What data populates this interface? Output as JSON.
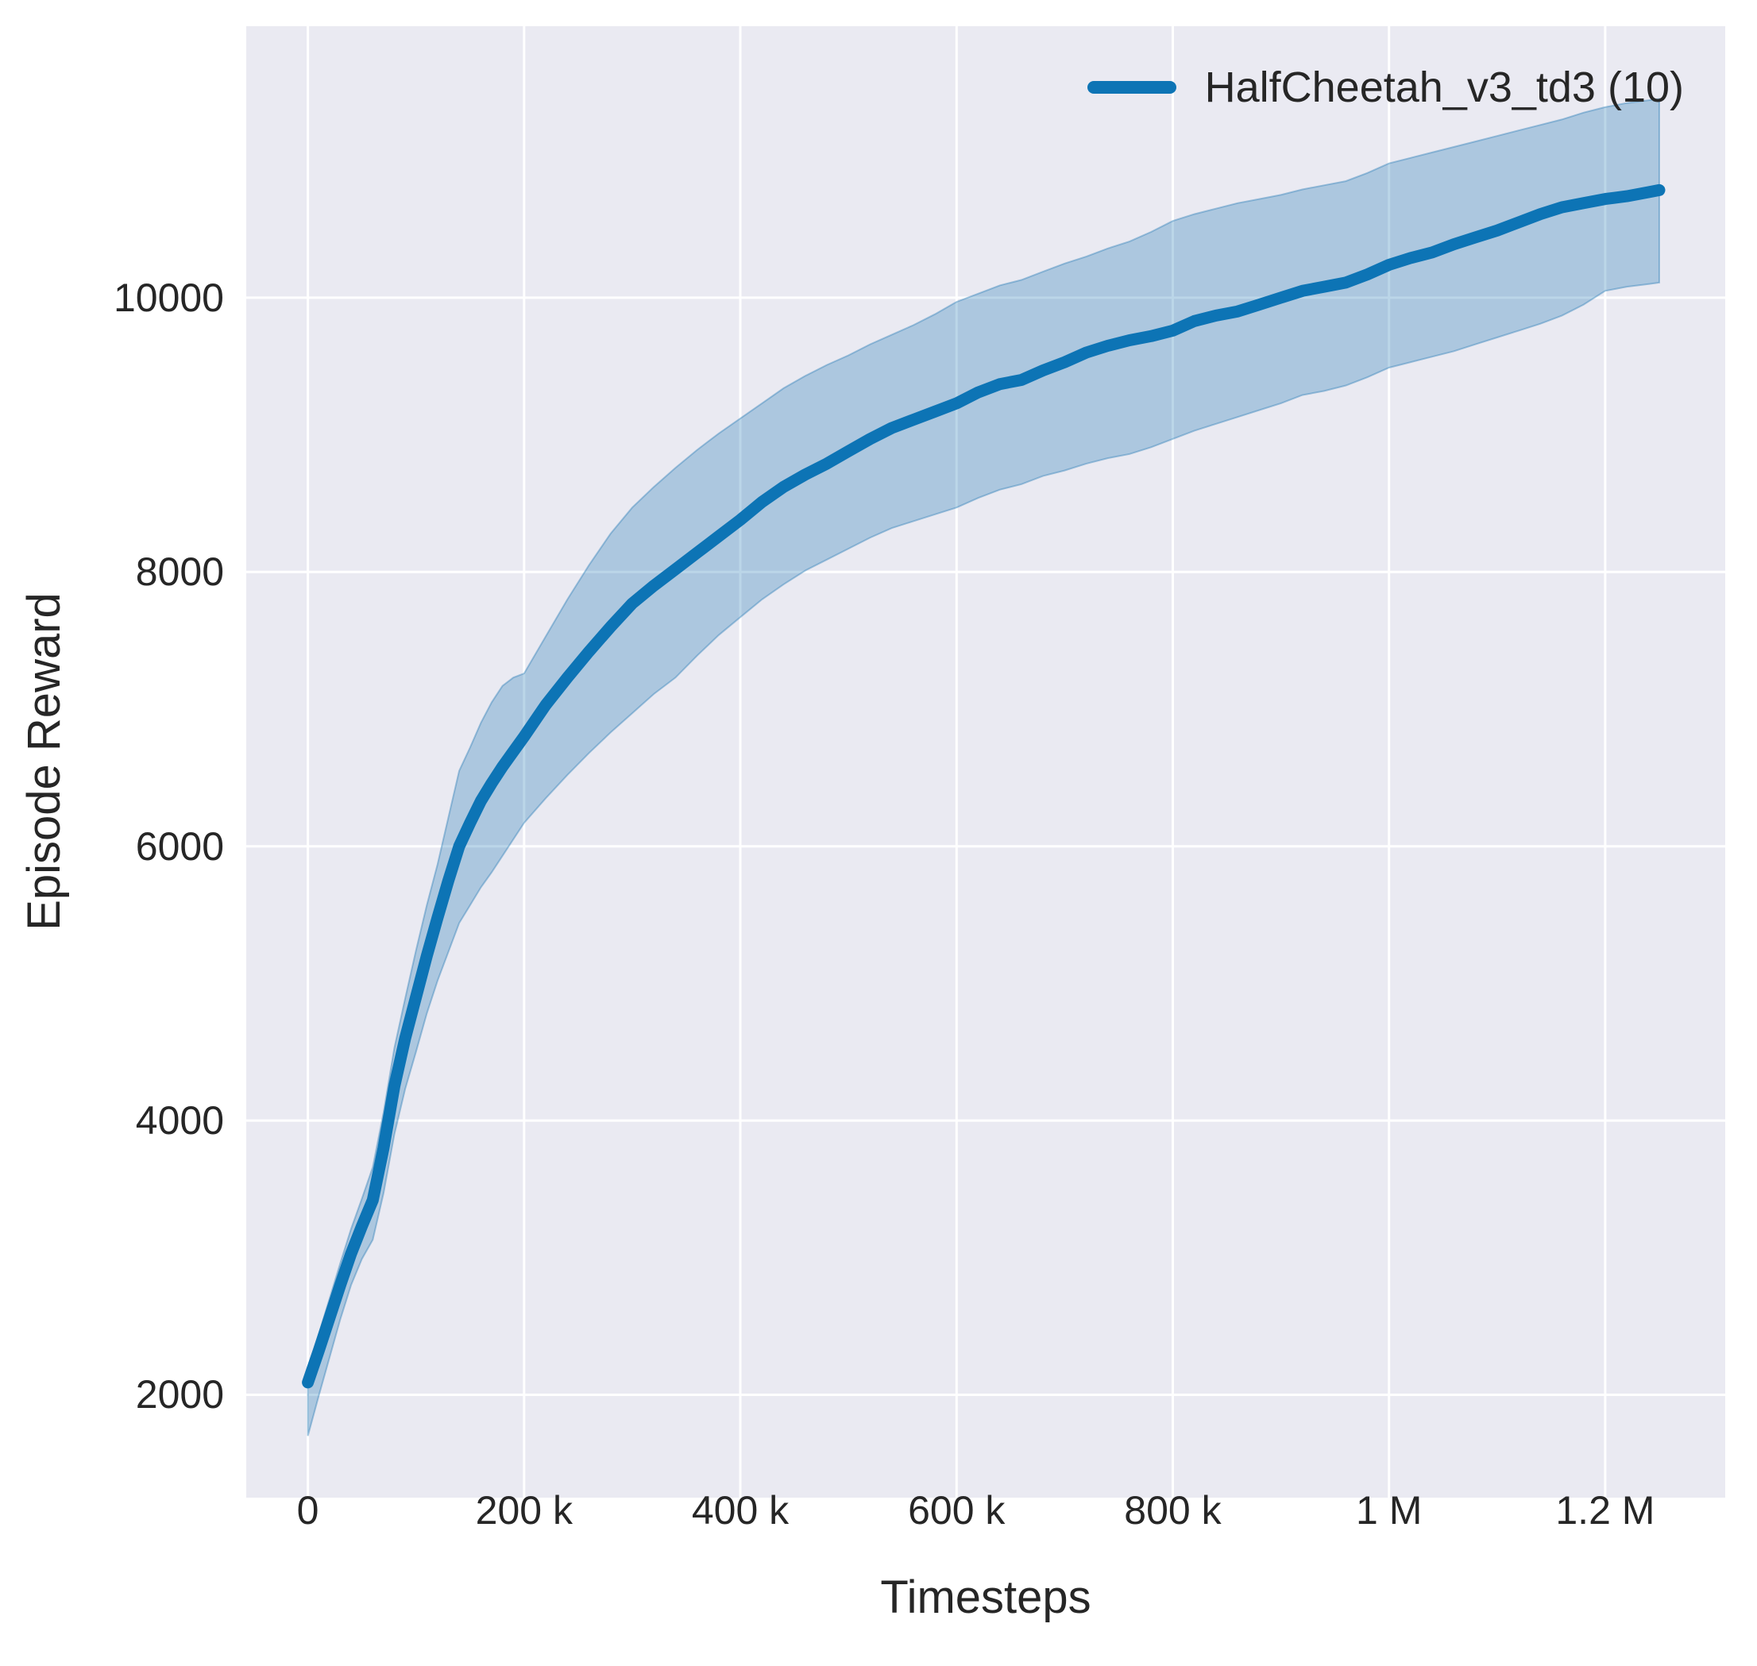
{
  "figure": {
    "background": "#ffffff",
    "plot_background": "#eaeaf2",
    "grid_color": "#ffffff",
    "text_color": "#262626"
  },
  "legend": {
    "position": "upper-right",
    "entries": [
      {
        "label": "HalfCheetah_v3_td3 (10)",
        "color": "#0d74b5"
      }
    ]
  },
  "chart_data": {
    "type": "line",
    "title": "",
    "xlabel": "Timesteps",
    "ylabel": "Episode Reward",
    "grid": true,
    "legend_position": "upper right",
    "xlim": [
      -57000,
      1311000
    ],
    "ylim": [
      1250,
      11980
    ],
    "x_ticks": {
      "values": [
        0,
        200000,
        400000,
        600000,
        800000,
        1000000,
        1200000
      ],
      "labels": [
        "0",
        "200 k",
        "400 k",
        "600 k",
        "800 k",
        "1 M",
        "1.2 M"
      ]
    },
    "y_ticks": {
      "values": [
        2000,
        4000,
        6000,
        8000,
        10000
      ],
      "labels": [
        "2000",
        "4000",
        "6000",
        "8000",
        "10000"
      ]
    },
    "series": [
      {
        "name": "HalfCheetah_v3_td3 (10)",
        "color": "#0d74b5",
        "line_width": 15,
        "band_fill": "rgba(31,119,180,0.30)",
        "band_edge": "rgba(31,119,180,0.38)",
        "x": [
          0,
          10000,
          20000,
          30000,
          40000,
          50000,
          60000,
          70000,
          80000,
          90000,
          100000,
          110000,
          120000,
          130000,
          140000,
          150000,
          160000,
          170000,
          180000,
          190000,
          200000,
          220000,
          240000,
          260000,
          280000,
          300000,
          320000,
          340000,
          360000,
          380000,
          400000,
          420000,
          440000,
          460000,
          480000,
          500000,
          520000,
          540000,
          560000,
          580000,
          600000,
          620000,
          640000,
          660000,
          680000,
          700000,
          720000,
          740000,
          760000,
          780000,
          800000,
          820000,
          840000,
          860000,
          880000,
          900000,
          920000,
          940000,
          960000,
          980000,
          1000000,
          1020000,
          1040000,
          1060000,
          1080000,
          1100000,
          1120000,
          1140000,
          1160000,
          1180000,
          1200000,
          1220000,
          1240000,
          1250000
        ],
        "mean": [
          2090,
          2320,
          2560,
          2800,
          3030,
          3230,
          3420,
          3800,
          4250,
          4600,
          4900,
          5200,
          5480,
          5750,
          6000,
          6170,
          6330,
          6460,
          6580,
          6690,
          6800,
          7030,
          7230,
          7420,
          7600,
          7770,
          7900,
          8020,
          8140,
          8260,
          8380,
          8510,
          8620,
          8710,
          8790,
          8880,
          8970,
          9050,
          9110,
          9170,
          9230,
          9310,
          9370,
          9400,
          9470,
          9530,
          9600,
          9650,
          9690,
          9720,
          9760,
          9830,
          9870,
          9900,
          9950,
          10000,
          10050,
          10080,
          10110,
          10170,
          10240,
          10290,
          10330,
          10390,
          10440,
          10490,
          10550,
          10610,
          10660,
          10690,
          10720,
          10740,
          10770,
          10785
        ],
        "band_lower": [
          1700,
          1990,
          2270,
          2550,
          2800,
          2990,
          3130,
          3470,
          3900,
          4230,
          4500,
          4780,
          5020,
          5230,
          5440,
          5570,
          5700,
          5810,
          5930,
          6050,
          6170,
          6350,
          6520,
          6680,
          6830,
          6970,
          7110,
          7230,
          7390,
          7540,
          7670,
          7800,
          7910,
          8010,
          8090,
          8170,
          8250,
          8320,
          8370,
          8420,
          8470,
          8540,
          8600,
          8640,
          8700,
          8740,
          8790,
          8830,
          8860,
          8910,
          8970,
          9030,
          9080,
          9130,
          9180,
          9230,
          9290,
          9320,
          9360,
          9420,
          9490,
          9530,
          9570,
          9610,
          9660,
          9710,
          9760,
          9810,
          9870,
          9950,
          10050,
          10080,
          10100,
          10110
        ],
        "band_upper": [
          2170,
          2440,
          2700,
          2960,
          3210,
          3430,
          3660,
          4060,
          4530,
          4890,
          5240,
          5570,
          5870,
          6210,
          6550,
          6720,
          6900,
          7050,
          7170,
          7230,
          7260,
          7530,
          7800,
          8050,
          8280,
          8470,
          8620,
          8760,
          8890,
          9010,
          9120,
          9230,
          9340,
          9430,
          9510,
          9580,
          9660,
          9730,
          9800,
          9880,
          9970,
          10030,
          10090,
          10130,
          10190,
          10250,
          10300,
          10360,
          10410,
          10480,
          10560,
          10610,
          10650,
          10690,
          10720,
          10750,
          10790,
          10820,
          10850,
          10910,
          10980,
          11020,
          11060,
          11100,
          11140,
          11180,
          11220,
          11260,
          11300,
          11350,
          11390,
          11420,
          11440,
          11450
        ]
      }
    ]
  }
}
